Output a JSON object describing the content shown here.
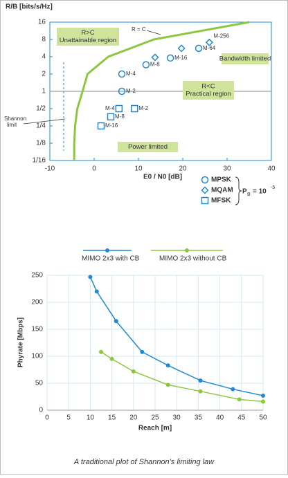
{
  "chart_data": [
    {
      "type": "scatter",
      "xlabel": "E0 / N0 [dB]",
      "ylabel": "R/B [bits/s/Hz]",
      "xlim": [
        -10,
        40
      ],
      "xticks": [
        -10,
        0,
        10,
        20,
        30,
        40
      ],
      "ylim": [
        0.0625,
        16
      ],
      "log_y": true,
      "yticks": [
        {
          "value": 0.0625,
          "label": "1/16"
        },
        {
          "value": 0.125,
          "label": "1/8"
        },
        {
          "value": 0.25,
          "label": "1/4"
        },
        {
          "value": 0.5,
          "label": "1/2"
        },
        1,
        2,
        4,
        8,
        16
      ],
      "curve": {
        "label": "R = C",
        "color": "#8dc63f",
        "x": [
          -4.5,
          -4.5,
          -4.3,
          -3.8,
          -2.6,
          -1.5,
          3.2,
          13.5,
          35
        ],
        "y": [
          0.0625,
          0.125,
          0.25,
          0.5,
          1,
          2,
          4,
          8,
          16
        ]
      },
      "series": [
        {
          "name": "MPSK",
          "marker": "circle",
          "color": "#1e88d0",
          "x": [
            6.25,
            6.25,
            11.7,
            17.2,
            23.6
          ],
          "y": [
            1,
            2,
            2.9,
            3.8,
            5.6
          ],
          "point_labels": [
            "M-2",
            "M-4",
            "M-8",
            "M-16",
            "M-64"
          ]
        },
        {
          "name": "MQAM",
          "marker": "diamond",
          "color": "#1e88d0",
          "x": [
            13.75,
            19.7,
            26
          ],
          "y": [
            3.9,
            5.6,
            7.1
          ],
          "point_labels": [
            null,
            null,
            "M-256"
          ]
        },
        {
          "name": "MFSK",
          "marker": "square",
          "color": "#1e88d0",
          "x": [
            5.6,
            9.1,
            3.75,
            1.56
          ],
          "y": [
            0.5,
            0.5,
            0.36,
            0.25
          ],
          "point_labels": [
            "M-4",
            "M-2",
            "M-8",
            "M-16"
          ]
        }
      ],
      "annotations": [
        "R>C",
        "Unattainable region",
        "Bandwidth limited",
        "R<C",
        "Practical region",
        "Power limited",
        "Shannon",
        "limit"
      ],
      "legend_note": {
        "text": "P",
        "sub": "B",
        "eq": "= 10",
        "sup": "-5"
      }
    },
    {
      "type": "line",
      "xlabel": "Reach [m]",
      "ylabel": "Phyrate [Mbps]",
      "xlim": [
        0,
        50
      ],
      "xticks": [
        0,
        5,
        10,
        15,
        20,
        25,
        30,
        35,
        40,
        45,
        50
      ],
      "ylim": [
        0,
        250
      ],
      "yticks": [
        0,
        50,
        100,
        150,
        200,
        250
      ],
      "grid": true,
      "legend": "top",
      "series": [
        {
          "name": "MIMO 2x3 with CB",
          "color": "#1e88d0",
          "x": [
            10,
            11.5,
            16,
            22,
            28,
            35.5,
            43,
            50
          ],
          "values": [
            247,
            220,
            165,
            108,
            83,
            55,
            39,
            27
          ]
        },
        {
          "name": "MIMO 2x3 without CB",
          "color": "#8dc63f",
          "x": [
            12.5,
            15,
            20,
            28,
            35.5,
            44.5,
            50
          ],
          "values": [
            108,
            95,
            72,
            47,
            35,
            20,
            16
          ]
        }
      ]
    }
  ],
  "caption": "A traditional plot of Shannon's limiting law"
}
